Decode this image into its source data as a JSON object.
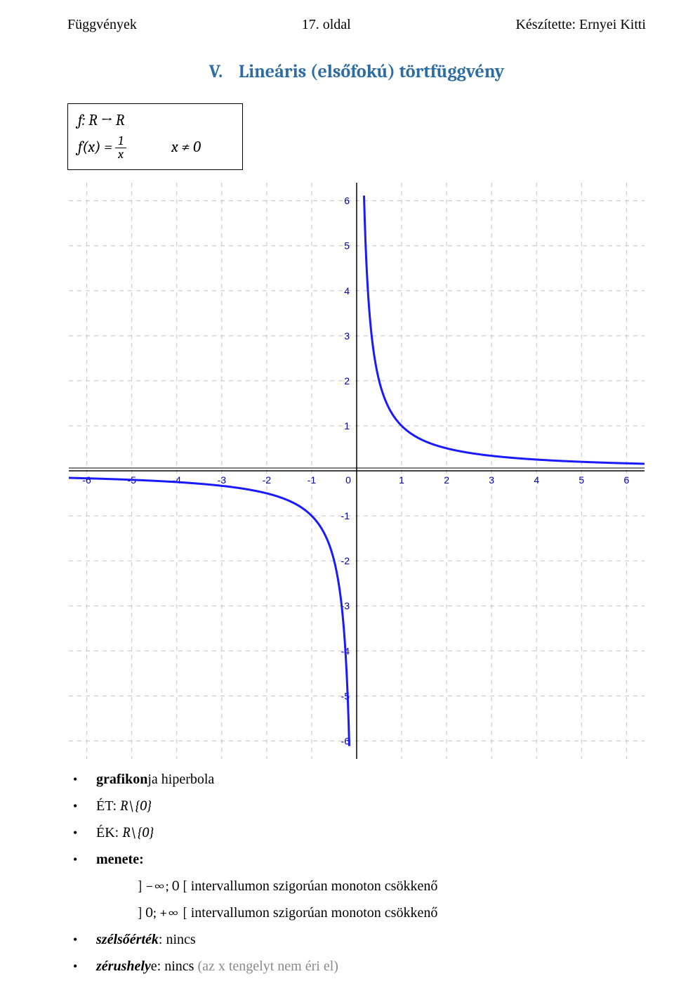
{
  "header": {
    "left": "Függvények",
    "center": "17. oldal",
    "right": "Készítette: Ernyei Kitti"
  },
  "section": {
    "numeral": "V.",
    "title": "Lineáris (elsőfokú) törtfüggvény",
    "title_color": "#2e6da4"
  },
  "fn_box": {
    "line1": "f: R → R",
    "fx_label": "f(x) =",
    "frac_num": "1",
    "frac_den": "x",
    "cond": "x ≠ 0"
  },
  "chart": {
    "type": "line",
    "xlim": [
      -6.4,
      6.4
    ],
    "ylim": [
      -6.4,
      6.4
    ],
    "xtick_min": -6,
    "xtick_max": 6,
    "tick_step": 1,
    "ytick_min": -6,
    "ytick_max": 6,
    "background_color": "#ffffff",
    "axis_color": "#000000",
    "grid_color": "#c3c3c3",
    "grid_dash": "6,6",
    "tick_font_size": 14,
    "tick_color": "#0000b0",
    "curve_color": "#1a1aff",
    "curve_width": 3
  },
  "bullets": {
    "b1_bold": "grafikon",
    "b1_rest": "ja hiperbola",
    "b2_label": "ÉT: ",
    "b2_val": "R\\{0}",
    "b3_label": "ÉK: ",
    "b3_val": "R\\{0}",
    "b4": "menete:",
    "sub1_int": "] −∞; 0 [",
    "sub1_txt": " intervallumon szigorúan monoton csökkenő",
    "sub2_int": "] 0; +∞ [",
    "sub2_txt": " intervallumon szigorúan monoton csökkenő",
    "b5_lbl": "szélsőérték",
    "b5_rest": ": nincs",
    "b6_lbl": "zérushely",
    "b6_rest1": "e: nincs ",
    "b6_grey": "(az x tengelyt nem éri el)"
  }
}
